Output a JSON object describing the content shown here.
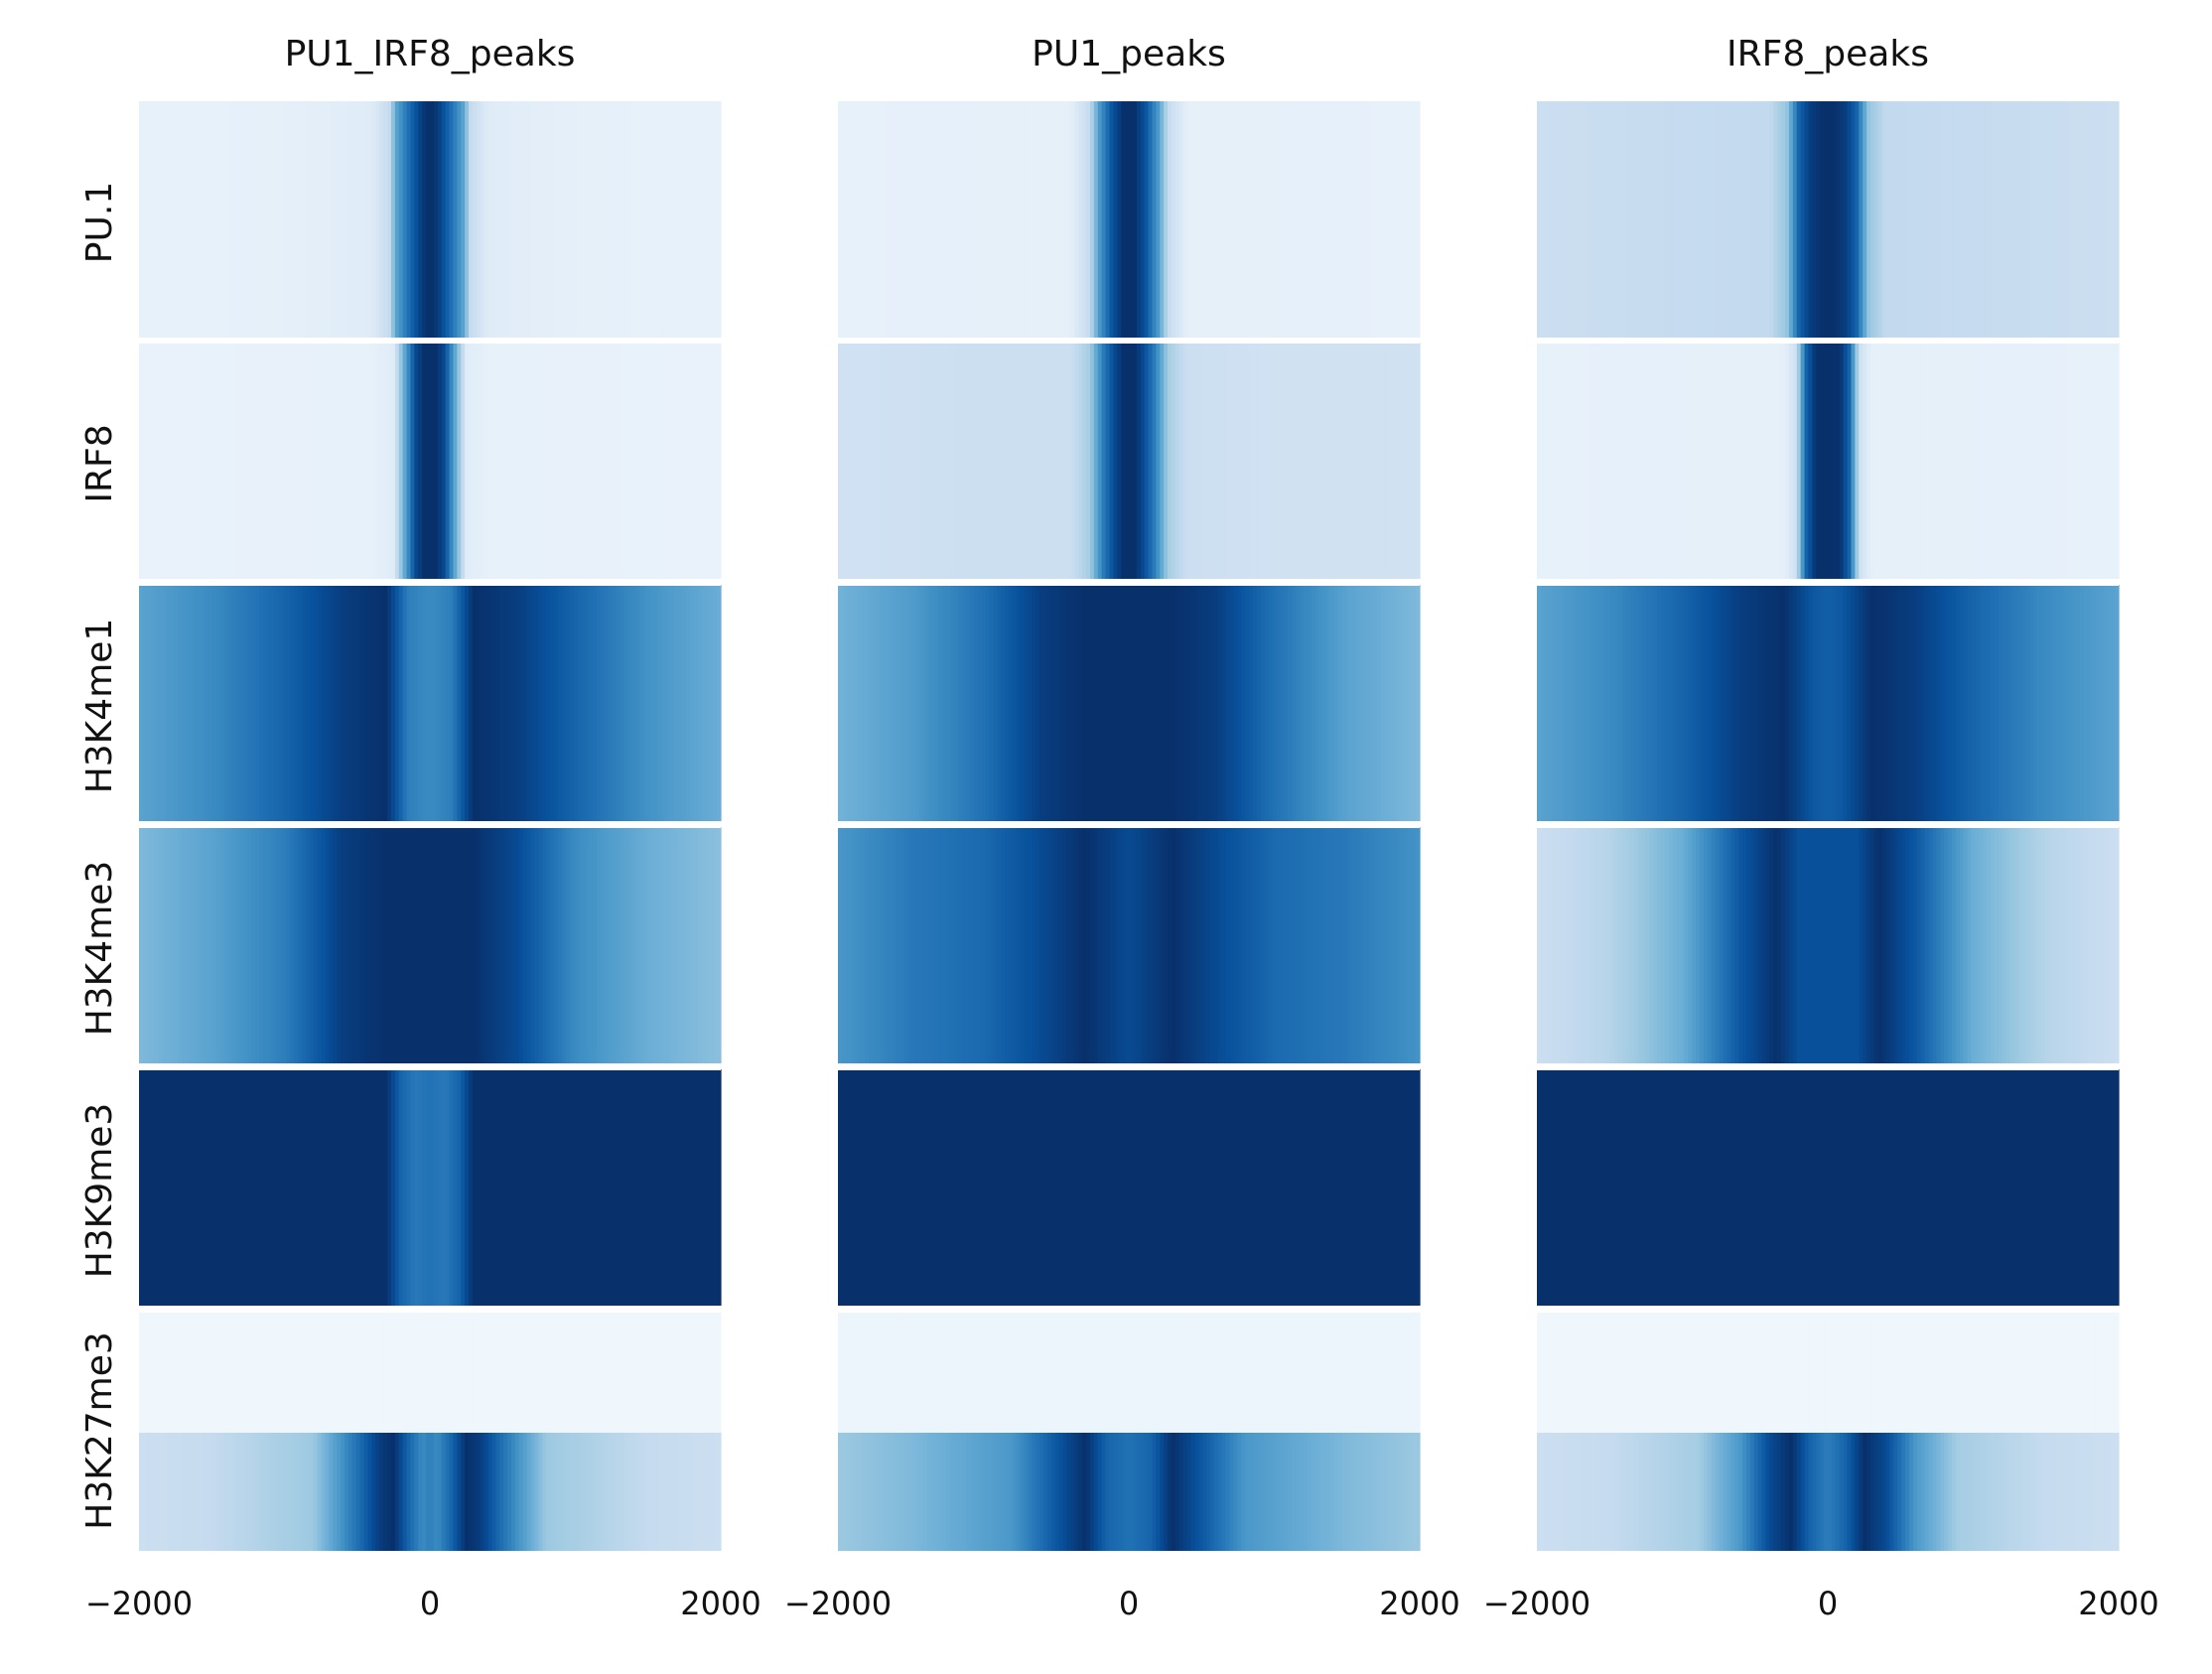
{
  "chart_data": {
    "type": "heatmap",
    "colormap": "Blues",
    "columns": [
      "PU1_IRF8_peaks",
      "PU1_peaks",
      "IRF8_peaks"
    ],
    "rows": [
      "PU.1",
      "IRF8",
      "H3K4me1",
      "H3K4me3",
      "H3K9me3",
      "H3K27me3"
    ],
    "x_ticks": [
      -2000,
      0,
      2000
    ],
    "x_tick_labels": [
      "−2000",
      "0",
      "2000"
    ],
    "xlim": [
      -2000,
      2000
    ],
    "profiles": {
      "PU1_IRF8_peaks": {
        "PU.1": {
          "x": [
            -2000,
            -1500,
            -1000,
            -400,
            -280,
            -230,
            -150,
            -60,
            -20,
            20,
            60,
            150,
            230,
            280,
            400,
            1000,
            1500,
            2000
          ],
          "v": [
            0.08,
            0.08,
            0.09,
            0.12,
            0.25,
            0.55,
            0.75,
            0.95,
            1.0,
            1.0,
            0.95,
            0.75,
            0.55,
            0.25,
            0.12,
            0.09,
            0.08,
            0.08
          ]
        },
        "IRF8": {
          "x": [
            -2000,
            -400,
            -250,
            -180,
            -100,
            -40,
            0,
            40,
            100,
            180,
            250,
            400,
            2000
          ],
          "v": [
            0.07,
            0.08,
            0.12,
            0.5,
            0.9,
            1.0,
            1.0,
            1.0,
            0.9,
            0.5,
            0.12,
            0.08,
            0.07
          ]
        },
        "H3K4me1": {
          "x": [
            -2000,
            -1500,
            -1000,
            -600,
            -300,
            -150,
            0,
            150,
            300,
            600,
            1000,
            1500,
            2000
          ],
          "v": [
            0.55,
            0.65,
            0.8,
            0.95,
            1.0,
            0.7,
            0.65,
            0.7,
            1.0,
            0.95,
            0.8,
            0.62,
            0.5
          ]
        },
        "H3K4me3": {
          "x": [
            -2000,
            -1500,
            -1000,
            -600,
            -300,
            0,
            300,
            600,
            1000,
            1500,
            2000
          ],
          "v": [
            0.45,
            0.55,
            0.7,
            0.95,
            1.0,
            1.0,
            1.0,
            0.9,
            0.65,
            0.5,
            0.42
          ]
        },
        "H3K9me3": {
          "x": [
            -2000,
            -300,
            -200,
            -100,
            0,
            100,
            200,
            300,
            2000
          ],
          "v": [
            1.0,
            1.0,
            0.8,
            0.72,
            0.75,
            0.72,
            0.8,
            1.0,
            1.0
          ]
        },
        "H3K27me3": {
          "x": [
            -2000,
            2000
          ],
          "v": [
            0.04,
            0.04
          ]
        },
        "H3K27me3_lower": {
          "x": [
            -2000,
            -1500,
            -800,
            -500,
            -350,
            -250,
            -150,
            -50,
            0,
            50,
            150,
            250,
            350,
            500,
            800,
            1500,
            2000
          ],
          "v": [
            0.22,
            0.25,
            0.38,
            0.75,
            0.95,
            1.0,
            0.8,
            0.65,
            0.7,
            0.65,
            0.8,
            1.0,
            0.95,
            0.75,
            0.38,
            0.25,
            0.22
          ]
        }
      },
      "PU1_peaks": {
        "PU.1": {
          "x": [
            -2000,
            -400,
            -270,
            -200,
            -120,
            -40,
            0,
            40,
            120,
            200,
            270,
            400,
            2000
          ],
          "v": [
            0.08,
            0.09,
            0.25,
            0.6,
            0.85,
            1.0,
            1.0,
            1.0,
            0.85,
            0.6,
            0.25,
            0.09,
            0.08
          ]
        },
        "IRF8": {
          "x": [
            -2000,
            -1000,
            -400,
            -270,
            -180,
            -100,
            -40,
            0,
            40,
            100,
            180,
            270,
            400,
            1000,
            2000
          ],
          "v": [
            0.2,
            0.22,
            0.22,
            0.35,
            0.7,
            0.9,
            1.0,
            1.0,
            1.0,
            0.9,
            0.7,
            0.35,
            0.22,
            0.2,
            0.2
          ]
        },
        "H3K4me1": {
          "x": [
            -2000,
            -1500,
            -1000,
            -600,
            -300,
            0,
            300,
            600,
            1000,
            1500,
            2000
          ],
          "v": [
            0.48,
            0.58,
            0.75,
            0.95,
            1.0,
            1.0,
            1.0,
            0.95,
            0.75,
            0.55,
            0.45
          ]
        },
        "H3K4me3": {
          "x": [
            -2000,
            -1500,
            -1000,
            -600,
            -300,
            0,
            300,
            600,
            1000,
            1500,
            2000
          ],
          "v": [
            0.6,
            0.72,
            0.78,
            0.9,
            1.0,
            0.9,
            1.0,
            0.9,
            0.78,
            0.72,
            0.62
          ]
        },
        "H3K9me3": {
          "x": [
            -2000,
            2000
          ],
          "v": [
            1.0,
            1.0
          ]
        },
        "H3K27me3": {
          "x": [
            -2000,
            2000
          ],
          "v": [
            0.05,
            0.05
          ]
        },
        "H3K27me3_lower": {
          "x": [
            -2000,
            -1500,
            -800,
            -500,
            -300,
            -150,
            0,
            150,
            300,
            500,
            800,
            1500,
            2000
          ],
          "v": [
            0.38,
            0.45,
            0.6,
            0.85,
            1.0,
            0.8,
            0.75,
            0.8,
            1.0,
            0.85,
            0.6,
            0.45,
            0.38
          ]
        }
      },
      "IRF8_peaks": {
        "PU.1": {
          "x": [
            -2000,
            -1000,
            -400,
            -280,
            -200,
            -120,
            -40,
            0,
            40,
            120,
            200,
            280,
            400,
            1000,
            2000
          ],
          "v": [
            0.22,
            0.25,
            0.26,
            0.4,
            0.8,
            0.95,
            1.0,
            1.0,
            1.0,
            0.95,
            0.8,
            0.4,
            0.26,
            0.25,
            0.22
          ]
        },
        "IRF8": {
          "x": [
            -2000,
            -300,
            -220,
            -150,
            -80,
            0,
            80,
            150,
            220,
            300,
            2000
          ],
          "v": [
            0.08,
            0.09,
            0.2,
            0.8,
            1.0,
            1.0,
            1.0,
            0.8,
            0.2,
            0.09,
            0.08
          ]
        },
        "H3K4me1": {
          "x": [
            -2000,
            -1500,
            -1000,
            -600,
            -300,
            -100,
            0,
            100,
            300,
            600,
            1000,
            1500,
            2000
          ],
          "v": [
            0.55,
            0.65,
            0.8,
            0.95,
            1.0,
            0.85,
            0.82,
            0.85,
            1.0,
            0.95,
            0.8,
            0.65,
            0.55
          ]
        },
        "H3K4me3": {
          "x": [
            -2000,
            -1500,
            -1000,
            -600,
            -350,
            -200,
            0,
            200,
            350,
            600,
            1000,
            1500,
            2000
          ],
          "v": [
            0.22,
            0.3,
            0.5,
            0.85,
            1.0,
            0.88,
            0.88,
            0.88,
            1.0,
            0.85,
            0.5,
            0.3,
            0.22
          ]
        },
        "H3K9me3": {
          "x": [
            -2000,
            2000
          ],
          "v": [
            1.0,
            1.0
          ]
        },
        "H3K27me3": {
          "x": [
            -2000,
            2000
          ],
          "v": [
            0.04,
            0.04
          ]
        },
        "H3K27me3_lower": {
          "x": [
            -2000,
            -1500,
            -900,
            -600,
            -400,
            -250,
            -120,
            0,
            120,
            250,
            400,
            600,
            900,
            1500,
            2000
          ],
          "v": [
            0.22,
            0.25,
            0.35,
            0.6,
            0.9,
            1.0,
            0.8,
            0.7,
            0.8,
            1.0,
            0.9,
            0.6,
            0.35,
            0.25,
            0.22
          ]
        }
      }
    }
  }
}
